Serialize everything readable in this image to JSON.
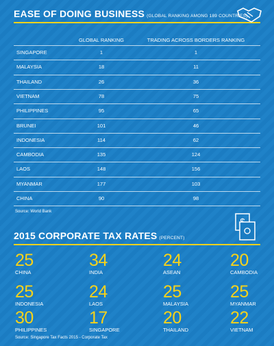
{
  "ease": {
    "title": "EASE OF DOING BUSINESS",
    "subtitle": "(GLOBAL RANKING AMONG 189 COUNTRIES)",
    "table": {
      "header": [
        "GLOBAL RANKING",
        "TRADING ACROSS BORDERS RANKING"
      ],
      "rows": [
        [
          "SINGAPORE",
          1,
          1
        ],
        [
          "MALAYSIA",
          18,
          11
        ],
        [
          "THAILAND",
          26,
          36
        ],
        [
          "VIETNAM",
          78,
          75
        ],
        [
          "PHILIPPINES",
          95,
          65
        ],
        [
          "BRUNEI",
          101,
          46
        ],
        [
          "INDONESIA",
          114,
          62
        ],
        [
          "CAMBODIA",
          135,
          124
        ],
        [
          "LAOS",
          148,
          156
        ],
        [
          "MYANMAR",
          177,
          103
        ],
        [
          "CHINA",
          90,
          98
        ]
      ]
    },
    "source": "Source: World Bank"
  },
  "tax": {
    "title": "2015 CORPORATE TAX RATES",
    "subtitle": "(PERCENT)",
    "items": [
      {
        "value": 25,
        "country": "CHINA"
      },
      {
        "value": 34,
        "country": "INDIA"
      },
      {
        "value": 24,
        "country": "ASEAN"
      },
      {
        "value": 20,
        "country": "CAMBODIA"
      },
      {
        "value": 25,
        "country": "INDONESIA"
      },
      {
        "value": 24,
        "country": "LAOS"
      },
      {
        "value": 25,
        "country": "MALAYSIA"
      },
      {
        "value": 25,
        "country": "MYANMAR"
      },
      {
        "value": 30,
        "country": "PHILIPPINES"
      },
      {
        "value": 17,
        "country": "SINGAPORE"
      },
      {
        "value": 20,
        "country": "THAILAND"
      },
      {
        "value": 22,
        "country": "VIETNAM"
      }
    ],
    "source": "Source: Singapore Tax Facts 2015 - Corporate Tax"
  }
}
